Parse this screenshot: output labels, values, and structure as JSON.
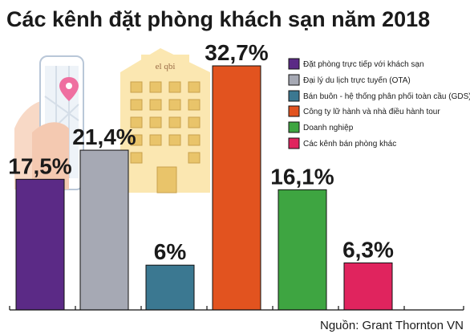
{
  "chart_data": {
    "type": "bar",
    "title": "Các kênh đặt phòng khách sạn năm 2018",
    "source": "Nguồn: Grant Thornton VN",
    "categories": [
      "Đặt phòng trực tiếp với khách sạn",
      "Đại lý du lịch trực tuyến (OTA)",
      "Bán buôn - hệ thống phân phối toàn cầu (GDS)",
      "Công ty lữ hành và nhà điều hành tour",
      "Doanh nghiệp",
      "Các kênh bán phòng khác"
    ],
    "values": [
      17.5,
      21.4,
      6,
      32.7,
      16.1,
      6.3
    ],
    "value_labels": [
      "17,5%",
      "21,4%",
      "6%",
      "32,7%",
      "16,1%",
      "6,3%"
    ],
    "colors": [
      "#5b2a86",
      "#a6a9b4",
      "#3b7891",
      "#e2531f",
      "#3ea541",
      "#e0245e"
    ],
    "legend_position": "top-right",
    "grid": false,
    "ylim": [
      0,
      32.7
    ]
  }
}
